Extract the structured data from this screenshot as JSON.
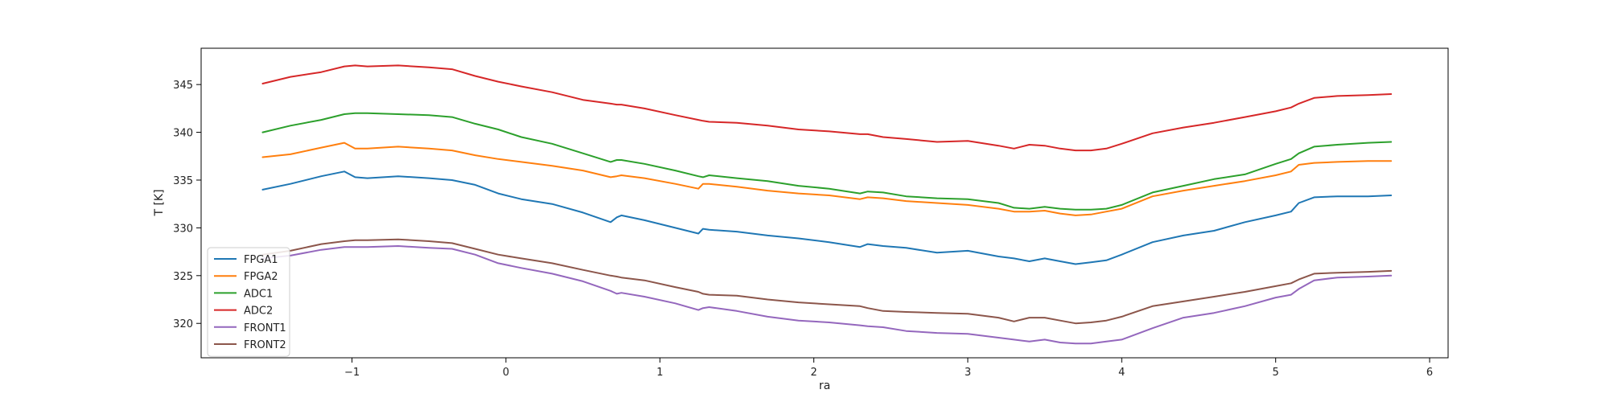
{
  "chart_data": {
    "type": "line",
    "title": "",
    "xlabel": "ra",
    "ylabel": "T [K]",
    "xlim": [
      -1.98,
      6.12
    ],
    "ylim": [
      316.4,
      348.8
    ],
    "xticks": [
      -1,
      0,
      1,
      2,
      3,
      4,
      5,
      6
    ],
    "yticks": [
      320,
      325,
      330,
      335,
      340,
      345
    ],
    "legend_position": "lower-left",
    "grid": false,
    "series": [
      {
        "name": "FPGA1",
        "color": "#1f77b4",
        "x": [
          -1.58,
          -1.4,
          -1.2,
          -1.05,
          -0.98,
          -0.9,
          -0.7,
          -0.5,
          -0.35,
          -0.2,
          -0.05,
          0.1,
          0.3,
          0.5,
          0.68,
          0.72,
          0.75,
          0.9,
          1.1,
          1.25,
          1.28,
          1.32,
          1.5,
          1.7,
          1.9,
          2.1,
          2.3,
          2.35,
          2.45,
          2.6,
          2.8,
          3.0,
          3.2,
          3.3,
          3.4,
          3.5,
          3.6,
          3.7,
          3.8,
          3.9,
          4.0,
          4.2,
          4.4,
          4.6,
          4.8,
          5.0,
          5.1,
          5.15,
          5.25,
          5.4,
          5.6,
          5.75
        ],
        "y": [
          334.0,
          334.6,
          335.4,
          335.9,
          335.3,
          335.2,
          335.4,
          335.2,
          335.0,
          334.5,
          333.6,
          333.0,
          332.5,
          331.6,
          330.6,
          331.1,
          331.3,
          330.8,
          330.0,
          329.4,
          329.9,
          329.8,
          329.6,
          329.2,
          328.9,
          328.5,
          328.0,
          328.3,
          328.1,
          327.9,
          327.4,
          327.6,
          327.0,
          326.8,
          326.5,
          326.8,
          326.5,
          326.2,
          326.4,
          326.6,
          327.2,
          328.5,
          329.2,
          329.7,
          330.6,
          331.3,
          331.7,
          332.6,
          333.2,
          333.3,
          333.3,
          333.4
        ]
      },
      {
        "name": "FPGA2",
        "color": "#ff7f0e",
        "x": [
          -1.58,
          -1.4,
          -1.2,
          -1.05,
          -0.98,
          -0.9,
          -0.7,
          -0.5,
          -0.35,
          -0.2,
          -0.05,
          0.1,
          0.3,
          0.5,
          0.68,
          0.72,
          0.75,
          0.9,
          1.1,
          1.25,
          1.28,
          1.32,
          1.5,
          1.7,
          1.9,
          2.1,
          2.3,
          2.35,
          2.45,
          2.6,
          2.8,
          3.0,
          3.2,
          3.3,
          3.4,
          3.5,
          3.6,
          3.7,
          3.8,
          3.9,
          4.0,
          4.2,
          4.4,
          4.6,
          4.8,
          5.0,
          5.1,
          5.15,
          5.25,
          5.4,
          5.6,
          5.75
        ],
        "y": [
          337.4,
          337.7,
          338.4,
          338.9,
          338.3,
          338.3,
          338.5,
          338.3,
          338.1,
          337.6,
          337.2,
          336.9,
          336.5,
          336.0,
          335.3,
          335.4,
          335.5,
          335.2,
          334.6,
          334.1,
          334.6,
          334.6,
          334.3,
          333.9,
          333.6,
          333.4,
          333.0,
          333.2,
          333.1,
          332.8,
          332.6,
          332.4,
          332.0,
          331.7,
          331.7,
          331.8,
          331.5,
          331.3,
          331.4,
          331.7,
          332.0,
          333.3,
          333.9,
          334.4,
          334.9,
          335.5,
          335.9,
          336.6,
          336.8,
          336.9,
          337.0,
          337.0
        ]
      },
      {
        "name": "ADC1",
        "color": "#2ca02c",
        "x": [
          -1.58,
          -1.4,
          -1.2,
          -1.05,
          -0.98,
          -0.9,
          -0.7,
          -0.5,
          -0.35,
          -0.2,
          -0.05,
          0.1,
          0.3,
          0.5,
          0.68,
          0.72,
          0.75,
          0.9,
          1.1,
          1.25,
          1.28,
          1.32,
          1.5,
          1.7,
          1.9,
          2.1,
          2.3,
          2.35,
          2.45,
          2.6,
          2.8,
          3.0,
          3.2,
          3.3,
          3.4,
          3.5,
          3.6,
          3.7,
          3.8,
          3.9,
          4.0,
          4.2,
          4.4,
          4.6,
          4.8,
          5.0,
          5.1,
          5.15,
          5.25,
          5.4,
          5.6,
          5.75
        ],
        "y": [
          340.0,
          340.7,
          341.3,
          341.9,
          342.0,
          342.0,
          341.9,
          341.8,
          341.6,
          340.9,
          340.3,
          339.5,
          338.8,
          337.8,
          336.9,
          337.1,
          337.1,
          336.7,
          336.0,
          335.4,
          335.3,
          335.5,
          335.2,
          334.9,
          334.4,
          334.1,
          333.6,
          333.8,
          333.7,
          333.3,
          333.1,
          333.0,
          332.6,
          332.1,
          332.0,
          332.2,
          332.0,
          331.9,
          331.9,
          332.0,
          332.4,
          333.7,
          334.4,
          335.1,
          335.6,
          336.7,
          337.2,
          337.8,
          338.5,
          338.7,
          338.9,
          339.0
        ]
      },
      {
        "name": "ADC2",
        "color": "#d62728",
        "x": [
          -1.58,
          -1.4,
          -1.2,
          -1.05,
          -0.98,
          -0.9,
          -0.7,
          -0.5,
          -0.35,
          -0.2,
          -0.05,
          0.1,
          0.3,
          0.5,
          0.68,
          0.72,
          0.75,
          0.9,
          1.1,
          1.25,
          1.28,
          1.32,
          1.5,
          1.7,
          1.9,
          2.1,
          2.3,
          2.35,
          2.45,
          2.6,
          2.8,
          3.0,
          3.2,
          3.3,
          3.4,
          3.5,
          3.6,
          3.7,
          3.8,
          3.9,
          4.0,
          4.2,
          4.4,
          4.6,
          4.8,
          5.0,
          5.1,
          5.15,
          5.25,
          5.4,
          5.6,
          5.75
        ],
        "y": [
          345.1,
          345.8,
          346.3,
          346.9,
          347.0,
          346.9,
          347.0,
          346.8,
          346.6,
          345.9,
          345.3,
          344.8,
          344.2,
          343.4,
          343.0,
          342.9,
          342.9,
          342.5,
          341.8,
          341.3,
          341.2,
          341.1,
          341.0,
          340.7,
          340.3,
          340.1,
          339.8,
          339.8,
          339.5,
          339.3,
          339.0,
          339.1,
          338.6,
          338.3,
          338.7,
          338.6,
          338.3,
          338.1,
          338.1,
          338.3,
          338.8,
          339.9,
          340.5,
          341.0,
          341.6,
          342.2,
          342.6,
          343.0,
          343.6,
          343.8,
          343.9,
          344.0
        ]
      },
      {
        "name": "FRONT1",
        "color": "#9467bd",
        "x": [
          -1.58,
          -1.4,
          -1.2,
          -1.05,
          -0.98,
          -0.9,
          -0.7,
          -0.5,
          -0.35,
          -0.2,
          -0.05,
          0.1,
          0.3,
          0.5,
          0.68,
          0.72,
          0.75,
          0.9,
          1.1,
          1.25,
          1.28,
          1.32,
          1.5,
          1.7,
          1.9,
          2.1,
          2.3,
          2.35,
          2.45,
          2.6,
          2.8,
          3.0,
          3.2,
          3.3,
          3.4,
          3.5,
          3.6,
          3.7,
          3.8,
          3.9,
          4.0,
          4.2,
          4.4,
          4.6,
          4.8,
          5.0,
          5.1,
          5.15,
          5.25,
          5.4,
          5.6,
          5.75
        ],
        "y": [
          326.8,
          327.1,
          327.7,
          328.0,
          328.0,
          328.0,
          328.1,
          327.9,
          327.8,
          327.2,
          326.3,
          325.8,
          325.2,
          324.4,
          323.4,
          323.1,
          323.2,
          322.8,
          322.1,
          321.4,
          321.6,
          321.7,
          321.3,
          320.7,
          320.3,
          320.1,
          319.8,
          319.7,
          319.6,
          319.2,
          319.0,
          318.9,
          318.5,
          318.3,
          318.1,
          318.3,
          318.0,
          317.9,
          317.9,
          318.1,
          318.3,
          319.5,
          320.6,
          321.1,
          321.8,
          322.7,
          323.0,
          323.6,
          324.5,
          324.8,
          324.9,
          325.0
        ]
      },
      {
        "name": "FRONT2",
        "color": "#8c564b",
        "x": [
          -1.58,
          -1.4,
          -1.2,
          -1.05,
          -0.98,
          -0.9,
          -0.7,
          -0.5,
          -0.35,
          -0.2,
          -0.05,
          0.1,
          0.3,
          0.5,
          0.68,
          0.72,
          0.75,
          0.9,
          1.1,
          1.25,
          1.28,
          1.32,
          1.5,
          1.7,
          1.9,
          2.1,
          2.3,
          2.35,
          2.45,
          2.6,
          2.8,
          3.0,
          3.2,
          3.3,
          3.4,
          3.5,
          3.6,
          3.7,
          3.8,
          3.9,
          4.0,
          4.2,
          4.4,
          4.6,
          4.8,
          5.0,
          5.1,
          5.15,
          5.25,
          5.4,
          5.6,
          5.75
        ],
        "y": [
          327.2,
          327.6,
          328.3,
          328.6,
          328.7,
          328.7,
          328.8,
          328.6,
          328.4,
          327.8,
          327.2,
          326.8,
          326.3,
          325.6,
          325.0,
          324.9,
          324.8,
          324.5,
          323.8,
          323.3,
          323.1,
          323.0,
          322.9,
          322.5,
          322.2,
          322.0,
          321.8,
          321.6,
          321.3,
          321.2,
          321.1,
          321.0,
          320.6,
          320.2,
          320.6,
          320.6,
          320.3,
          320.0,
          320.1,
          320.3,
          320.7,
          321.8,
          322.3,
          322.8,
          323.3,
          323.9,
          324.2,
          324.6,
          325.2,
          325.3,
          325.4,
          325.5
        ]
      }
    ]
  }
}
